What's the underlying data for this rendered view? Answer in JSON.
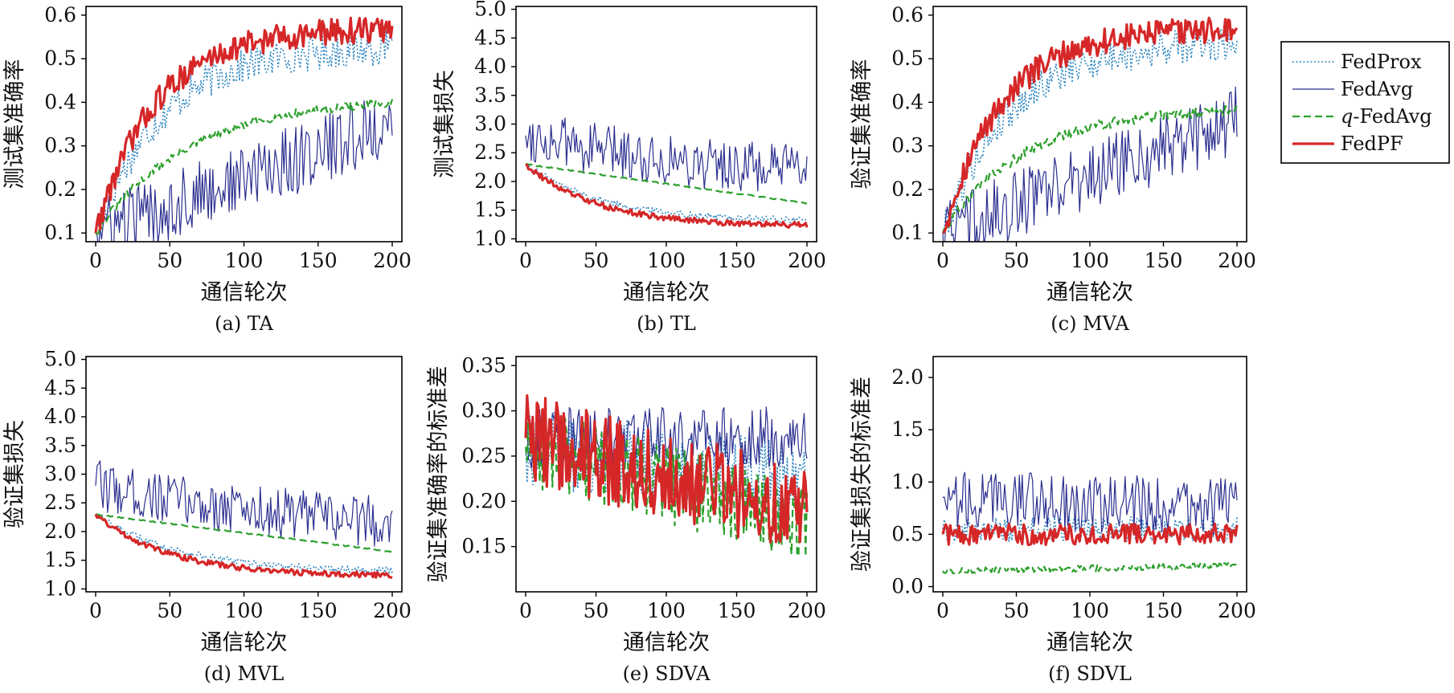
{
  "legend": {
    "entries": [
      {
        "name": "FedProx",
        "color": "#2E86C1",
        "dash": "2,2.5",
        "width": 1.6
      },
      {
        "name": "FedAvg",
        "color": "#2B2F8F",
        "dash": "",
        "width": 1.2
      },
      {
        "name": "q-FedAvg",
        "color": "#2CA02C",
        "dash": "9,5",
        "width": 2.2
      },
      {
        "name": "FedPF",
        "color": "#D62728",
        "dash": "",
        "width": 3.2
      }
    ],
    "placement": "right"
  },
  "chart_data": [
    {
      "id": "a",
      "type": "line",
      "caption": "(a) TA",
      "xlabel": "通信轮次",
      "ylabel": "测试集准确率",
      "xlim": [
        0,
        200
      ],
      "ylim": [
        0.08,
        0.62
      ],
      "xticks": [
        0,
        50,
        100,
        150,
        200
      ],
      "yticks": [
        0.1,
        0.2,
        0.3,
        0.4,
        0.5,
        0.6
      ],
      "series": [
        {
          "name": "FedProx",
          "start": 0.1,
          "end": 0.53,
          "rate": 0.022,
          "noise": 0.04
        },
        {
          "name": "FedAvg",
          "start": 0.1,
          "end": 0.35,
          "rate": 0.0,
          "noise": 0.08
        },
        {
          "name": "q-FedAvg",
          "start": 0.1,
          "end": 0.41,
          "rate": 0.016,
          "noise": 0.01
        },
        {
          "name": "FedPF",
          "start": 0.1,
          "end": 0.57,
          "rate": 0.025,
          "noise": 0.03
        }
      ]
    },
    {
      "id": "b",
      "type": "line",
      "caption": "(b) TL",
      "xlabel": "通信轮次",
      "ylabel": "测试集损失",
      "xlim": [
        0,
        200
      ],
      "ylim": [
        0.95,
        5.05
      ],
      "xticks": [
        0,
        50,
        100,
        150,
        200
      ],
      "yticks": [
        1.0,
        1.5,
        2.0,
        2.5,
        3.0,
        3.5,
        4.0,
        4.5,
        5.0
      ],
      "series": [
        {
          "name": "FedProx",
          "start": 2.3,
          "end": 1.3,
          "rate": 0.018,
          "noise": 0.06
        },
        {
          "name": "FedAvg",
          "start": 2.8,
          "end": 1.9,
          "rate": 0.006,
          "noise": 0.45
        },
        {
          "name": "q-FedAvg",
          "start": 2.3,
          "end": 1.62,
          "rate": 0.0,
          "noise": 0.01
        },
        {
          "name": "FedPF",
          "start": 2.3,
          "end": 1.22,
          "rate": 0.02,
          "noise": 0.05
        }
      ]
    },
    {
      "id": "c",
      "type": "line",
      "caption": "(c) MVA",
      "xlabel": "通信轮次",
      "ylabel": "验证集准确率",
      "xlim": [
        0,
        200
      ],
      "ylim": [
        0.08,
        0.62
      ],
      "xticks": [
        0,
        50,
        100,
        150,
        200
      ],
      "yticks": [
        0.1,
        0.2,
        0.3,
        0.4,
        0.5,
        0.6
      ],
      "series": [
        {
          "name": "FedProx",
          "start": 0.1,
          "end": 0.54,
          "rate": 0.022,
          "noise": 0.04
        },
        {
          "name": "FedAvg",
          "start": 0.1,
          "end": 0.36,
          "rate": 0.0,
          "noise": 0.08
        },
        {
          "name": "q-FedAvg",
          "start": 0.1,
          "end": 0.39,
          "rate": 0.018,
          "noise": 0.012
        },
        {
          "name": "FedPF",
          "start": 0.1,
          "end": 0.57,
          "rate": 0.025,
          "noise": 0.03
        }
      ]
    },
    {
      "id": "d",
      "type": "line",
      "caption": "(d) MVL",
      "xlabel": "通信轮次",
      "ylabel": "验证集损失",
      "xlim": [
        0,
        200
      ],
      "ylim": [
        0.95,
        5.05
      ],
      "xticks": [
        0,
        50,
        100,
        150,
        200
      ],
      "yticks": [
        1.0,
        1.5,
        2.0,
        2.5,
        3.0,
        3.5,
        4.0,
        4.5,
        5.0
      ],
      "series": [
        {
          "name": "FedProx",
          "start": 2.3,
          "end": 1.3,
          "rate": 0.018,
          "noise": 0.06
        },
        {
          "name": "FedAvg",
          "start": 2.8,
          "end": 1.9,
          "rate": 0.006,
          "noise": 0.45
        },
        {
          "name": "q-FedAvg",
          "start": 2.3,
          "end": 1.65,
          "rate": 0.0,
          "noise": 0.01
        },
        {
          "name": "FedPF",
          "start": 2.3,
          "end": 1.22,
          "rate": 0.02,
          "noise": 0.05
        }
      ]
    },
    {
      "id": "e",
      "type": "line",
      "caption": "(e) SDVA",
      "xlabel": "通信轮次",
      "ylabel": "验证集准确率的标准差",
      "xlim": [
        0,
        200
      ],
      "ylim": [
        0.1,
        0.36
      ],
      "xticks": [
        0,
        50,
        100,
        150,
        200
      ],
      "yticks": [
        0.15,
        0.2,
        0.25,
        0.3,
        0.35
      ],
      "series": [
        {
          "name": "FedProx",
          "start": 0.26,
          "end": 0.22,
          "rate": 0.0,
          "noise": 0.045
        },
        {
          "name": "FedAvg",
          "start": 0.27,
          "end": 0.27,
          "rate": 0.0,
          "noise": 0.035
        },
        {
          "name": "q-FedAvg",
          "start": 0.26,
          "end": 0.18,
          "rate": 0.0,
          "noise": 0.045
        },
        {
          "name": "FedPF",
          "start": 0.27,
          "end": 0.19,
          "rate": 0.0,
          "noise": 0.05
        }
      ]
    },
    {
      "id": "f",
      "type": "line",
      "caption": "(f) SDVL",
      "xlabel": "通信轮次",
      "ylabel": "验证集损失的标准差",
      "xlim": [
        0,
        200
      ],
      "ylim": [
        -0.05,
        2.2
      ],
      "xticks": [
        0,
        50,
        100,
        150,
        200
      ],
      "yticks": [
        0.0,
        0.5,
        1.0,
        1.5,
        2.0
      ],
      "series": [
        {
          "name": "FedProx",
          "start": 0.55,
          "end": 0.55,
          "rate": 0.0,
          "noise": 0.12
        },
        {
          "name": "FedAvg",
          "start": 0.85,
          "end": 0.75,
          "rate": 0.0,
          "noise": 0.28
        },
        {
          "name": "q-FedAvg",
          "start": 0.15,
          "end": 0.2,
          "rate": 0.0,
          "noise": 0.03
        },
        {
          "name": "FedPF",
          "start": 0.5,
          "end": 0.5,
          "rate": 0.0,
          "noise": 0.1
        }
      ]
    }
  ]
}
